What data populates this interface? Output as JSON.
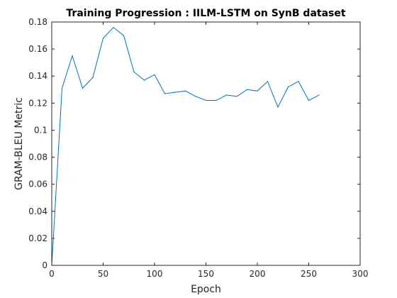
{
  "chart_data": {
    "type": "line",
    "title": "Training Progression : IILM-LSTM on SynB dataset",
    "xlabel": "Epoch",
    "ylabel": "GRAM-BLEU Metric",
    "xlim": [
      0,
      300
    ],
    "ylim": [
      0,
      0.18
    ],
    "xticks": [
      0,
      50,
      100,
      150,
      200,
      250,
      300
    ],
    "yticks": [
      0,
      0.02,
      0.04,
      0.06,
      0.08,
      0.1,
      0.12,
      0.14,
      0.16,
      0.18
    ],
    "xtick_labels": [
      "0",
      "50",
      "100",
      "150",
      "200",
      "250",
      "300"
    ],
    "ytick_labels": [
      "0",
      "0.02",
      "0.04",
      "0.06",
      "0.08",
      "0.1",
      "0.12",
      "0.14",
      "0.16",
      "0.18"
    ],
    "grid": false,
    "legend": "none",
    "series": [
      {
        "color": "#0072BD",
        "x": [
          0,
          10,
          20,
          30,
          40,
          50,
          60,
          70,
          80,
          90,
          100,
          110,
          120,
          130,
          140,
          150,
          160,
          170,
          180,
          190,
          200,
          210,
          220,
          230,
          240,
          250,
          260
        ],
        "y": [
          0.0,
          0.131,
          0.155,
          0.131,
          0.139,
          0.168,
          0.176,
          0.17,
          0.143,
          0.137,
          0.141,
          0.127,
          0.128,
          0.129,
          0.125,
          0.122,
          0.122,
          0.126,
          0.125,
          0.13,
          0.129,
          0.136,
          0.117,
          0.132,
          0.136,
          0.122,
          0.126
        ]
      }
    ]
  }
}
